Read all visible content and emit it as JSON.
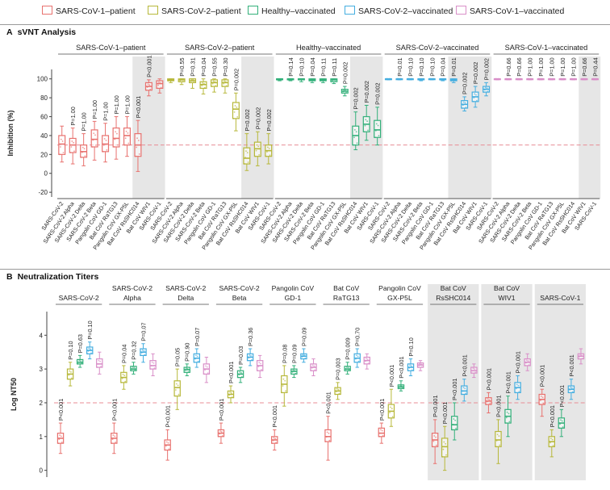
{
  "legend": [
    {
      "label": "SARS-CoV-1–patient",
      "color": "#e8726f"
    },
    {
      "label": "SARS-CoV-2–patient",
      "color": "#b7b83a"
    },
    {
      "label": "Healthy–vaccinated",
      "color": "#33b07a"
    },
    {
      "label": "SARS-CoV-2–vaccinated",
      "color": "#45aee0"
    },
    {
      "label": "SARS-CoV-1–vaccinated",
      "color": "#d98fc8"
    }
  ],
  "panel_a": {
    "letter": "A",
    "title": "sVNT Analysis"
  },
  "panel_b": {
    "letter": "B",
    "title": "Neutralization Titers"
  },
  "chart_data": [
    {
      "type": "box",
      "title": "sVNT Analysis",
      "xlabel": "",
      "ylabel": "Inhibition (%)",
      "ylim": [
        -25,
        110
      ],
      "yticks": [
        -20,
        0,
        20,
        40,
        60,
        80,
        100
      ],
      "threshold": 30,
      "categories": [
        "SARS-CoV-2",
        "SARS-CoV-2 Alpha",
        "SARS-CoV-2 Delta",
        "SARS-CoV-2 Beta",
        "Pangolin CoV GD-1",
        "Bat CoV RaTG13",
        "Pangolin CoV GX-P5L",
        "Bat CoV RsSHC014",
        "Bat CoV WIV1",
        "SARS-CoV-1"
      ],
      "shaded_from_index": 7,
      "groups": [
        {
          "name": "SARS-CoV-1–patient",
          "color": "#e8726f",
          "shaded_start": 7,
          "pvalues": [
            "",
            "P=1.00",
            "P=1.00",
            "P=1.00",
            "P=1.00",
            "P=1.00",
            "P=1.00",
            "P<0.001",
            "P<0.001",
            ""
          ],
          "boxes": [
            [
              12,
              20,
              31,
              40,
              50
            ],
            [
              10,
              22,
              30,
              37,
              48
            ],
            [
              8,
              17,
              23,
              30,
              42
            ],
            [
              14,
              28,
              36,
              46,
              55
            ],
            [
              12,
              23,
              31,
              40,
              53
            ],
            [
              15,
              28,
              37,
              48,
              60
            ],
            [
              18,
              30,
              40,
              48,
              60
            ],
            [
              2,
              18,
              30,
              42,
              56
            ],
            [
              82,
              88,
              92,
              96,
              99
            ],
            [
              85,
              90,
              95,
              98,
              100
            ]
          ]
        },
        {
          "name": "SARS-CoV-2–patient",
          "color": "#b7b83a",
          "shaded_start": 7,
          "pvalues": [
            "",
            "P=0.55",
            "P=0.31",
            "P=0.04",
            "P=0.55",
            "P=0.30",
            "P=0.002",
            "P=0.002",
            "P=0.002",
            "P=0.002"
          ],
          "boxes": [
            [
              96,
              98,
              99,
              100,
              100
            ],
            [
              94,
              97,
              99,
              100,
              100
            ],
            [
              90,
              96,
              98,
              100,
              100
            ],
            [
              84,
              90,
              94,
              97,
              100
            ],
            [
              86,
              92,
              96,
              99,
              100
            ],
            [
              85,
              92,
              96,
              99,
              100
            ],
            [
              45,
              58,
              68,
              75,
              85
            ],
            [
              3,
              10,
              16,
              27,
              42
            ],
            [
              8,
              18,
              26,
              33,
              44
            ],
            [
              10,
              18,
              24,
              30,
              42
            ]
          ]
        },
        {
          "name": "Healthy–vaccinated",
          "color": "#33b07a",
          "shaded_start": 7,
          "pvalues": [
            "",
            "P=0.14",
            "P=0.10",
            "P=0.04",
            "P=0.11",
            "P=0.11",
            "P=0.002",
            "P=0.002",
            "P=0.002",
            "P=0.002"
          ],
          "boxes": [
            [
              98,
              99,
              100,
              100,
              100
            ],
            [
              98,
              99,
              100,
              100,
              100
            ],
            [
              97,
              99,
              100,
              100,
              100
            ],
            [
              96,
              98,
              99,
              100,
              100
            ],
            [
              96,
              98,
              99,
              100,
              100
            ],
            [
              95,
              97,
              99,
              100,
              100
            ],
            [
              82,
              85,
              87,
              89,
              92
            ],
            [
              25,
              30,
              40,
              50,
              65
            ],
            [
              35,
              44,
              52,
              60,
              72
            ],
            [
              30,
              38,
              46,
              56,
              70
            ]
          ]
        },
        {
          "name": "SARS-CoV-2–vaccinated",
          "color": "#45aee0",
          "shaded_start": 6,
          "pvalues": [
            "",
            "P=0.01",
            "P=0.10",
            "P=0.10",
            "P=0.10",
            "P=0.04",
            "P=0.01",
            "P=0.002",
            "P=0.002",
            "P=0.002"
          ],
          "boxes": [
            [
              99,
              100,
              100,
              100,
              100
            ],
            [
              99,
              100,
              100,
              100,
              100
            ],
            [
              99,
              100,
              100,
              100,
              100
            ],
            [
              98,
              99,
              100,
              100,
              100
            ],
            [
              99,
              100,
              100,
              100,
              100
            ],
            [
              98,
              99,
              100,
              100,
              100
            ],
            [
              96,
              98,
              99,
              100,
              100
            ],
            [
              66,
              69,
              73,
              77,
              81
            ],
            [
              70,
              76,
              81,
              86,
              92
            ],
            [
              82,
              86,
              89,
              92,
              96
            ]
          ]
        },
        {
          "name": "SARS-CoV-1–vaccinated",
          "color": "#d98fc8",
          "shaded_start": 8,
          "pvalues": [
            "",
            "P=0.66",
            "P=0.66",
            "P=1.00",
            "P=1.00",
            "P=1.00",
            "P=1.00",
            "P=1.00",
            "P=0.66",
            "P=0.44"
          ],
          "boxes": [
            [
              99,
              100,
              100,
              100,
              100
            ],
            [
              99,
              100,
              100,
              100,
              100
            ],
            [
              99,
              100,
              100,
              100,
              100
            ],
            [
              99,
              100,
              100,
              100,
              100
            ],
            [
              99,
              100,
              100,
              100,
              100
            ],
            [
              99,
              100,
              100,
              100,
              100
            ],
            [
              99,
              100,
              100,
              100,
              100
            ],
            [
              99,
              100,
              100,
              100,
              100
            ],
            [
              99,
              100,
              100,
              100,
              100
            ],
            [
              99,
              100,
              100,
              100,
              100
            ]
          ]
        }
      ]
    },
    {
      "type": "box",
      "title": "Neutralization Titers",
      "xlabel": "",
      "ylabel": "Log NT50",
      "ylim": [
        -0.2,
        4.7
      ],
      "yticks": [
        0,
        1,
        2,
        3,
        4
      ],
      "threshold": 2,
      "group_order": [
        "SARS-CoV-1–patient",
        "SARS-CoV-2–patient",
        "Healthy–vaccinated",
        "SARS-CoV-2–vaccinated",
        "SARS-CoV-1–vaccinated"
      ],
      "colors": [
        "#e8726f",
        "#b7b83a",
        "#33b07a",
        "#45aee0",
        "#d98fc8"
      ],
      "viruses": [
        {
          "name": "SARS-CoV-2",
          "shaded": false,
          "pvalues": [
            "P<0.001",
            "P=0.10",
            "P=0.63",
            "P=0.10",
            ""
          ],
          "boxes": [
            [
              0.5,
              0.8,
              0.95,
              1.1,
              1.4
            ],
            [
              2.5,
              2.7,
              2.85,
              3.0,
              3.2
            ],
            [
              3.05,
              3.15,
              3.2,
              3.28,
              3.4
            ],
            [
              3.3,
              3.45,
              3.55,
              3.65,
              3.8
            ],
            [
              2.85,
              3.05,
              3.15,
              3.3,
              3.5
            ]
          ]
        },
        {
          "name": "SARS-CoV-2 Alpha",
          "shaded": false,
          "pvalues": [
            "P<0.001",
            "P=0.04",
            "P=0.32",
            "P=0.07",
            ""
          ],
          "boxes": [
            [
              0.5,
              0.8,
              0.95,
              1.1,
              1.4
            ],
            [
              2.4,
              2.6,
              2.75,
              2.9,
              3.1
            ],
            [
              2.85,
              2.95,
              3.0,
              3.08,
              3.2
            ],
            [
              3.2,
              3.4,
              3.5,
              3.6,
              3.75
            ],
            [
              2.8,
              3.0,
              3.1,
              3.25,
              3.45
            ]
          ]
        },
        {
          "name": "SARS-CoV-2 Delta",
          "shaded": false,
          "pvalues": [
            "P<0.001",
            "P=0.05",
            "P=0.90",
            "P=0.07",
            ""
          ],
          "boxes": [
            [
              0.3,
              0.6,
              0.75,
              0.9,
              1.2
            ],
            [
              1.8,
              2.2,
              2.45,
              2.65,
              3.0
            ],
            [
              2.8,
              2.9,
              2.98,
              3.05,
              3.15
            ],
            [
              3.05,
              3.2,
              3.32,
              3.45,
              3.6
            ],
            [
              2.6,
              2.85,
              3.0,
              3.15,
              3.35
            ]
          ]
        },
        {
          "name": "SARS-CoV-2 Beta",
          "shaded": false,
          "pvalues": [
            "P<0.001",
            "P<0.001",
            "P=0.03",
            "P=0.36",
            ""
          ],
          "boxes": [
            [
              0.8,
              1.0,
              1.1,
              1.2,
              1.4
            ],
            [
              2.0,
              2.15,
              2.25,
              2.35,
              2.5
            ],
            [
              2.6,
              2.75,
              2.85,
              2.95,
              3.05
            ],
            [
              3.1,
              3.25,
              3.35,
              3.45,
              3.6
            ],
            [
              2.75,
              2.95,
              3.1,
              3.25,
              3.4
            ]
          ]
        },
        {
          "name": "Pangolin CoV GD-1",
          "shaded": false,
          "pvalues": [
            "P<0.001",
            "P=0.08",
            "P=0.09",
            "P=0.09",
            ""
          ],
          "boxes": [
            [
              0.6,
              0.8,
              0.9,
              1.0,
              1.2
            ],
            [
              1.9,
              2.3,
              2.55,
              2.8,
              3.1
            ],
            [
              2.75,
              2.85,
              2.93,
              3.0,
              3.1
            ],
            [
              3.2,
              3.3,
              3.38,
              3.45,
              3.6
            ],
            [
              2.8,
              2.95,
              3.05,
              3.15,
              3.3
            ]
          ]
        },
        {
          "name": "Bat CoV RaTG13",
          "shaded": false,
          "pvalues": [
            "P<0.001",
            "P=0.003",
            "P=0.009",
            "P=0.70",
            ""
          ],
          "boxes": [
            [
              0.3,
              0.85,
              1.0,
              1.2,
              1.6
            ],
            [
              2.1,
              2.25,
              2.35,
              2.45,
              2.6
            ],
            [
              2.85,
              2.95,
              3.0,
              3.08,
              3.2
            ],
            [
              3.05,
              3.2,
              3.32,
              3.45,
              3.6
            ],
            [
              3.0,
              3.15,
              3.25,
              3.35,
              3.45
            ]
          ]
        },
        {
          "name": "Pangolin CoV GX-P5L",
          "shaded": false,
          "pvalues": [
            "P<0.001",
            "P<0.001",
            "P<0.001",
            "P=0.10",
            ""
          ],
          "boxes": [
            [
              0.8,
              1.0,
              1.1,
              1.25,
              1.4
            ],
            [
              1.3,
              1.55,
              1.75,
              1.95,
              2.4
            ],
            [
              2.35,
              2.42,
              2.47,
              2.53,
              2.65
            ],
            [
              2.8,
              2.95,
              3.05,
              3.15,
              3.3
            ],
            [
              2.95,
              3.05,
              3.12,
              3.18,
              3.25
            ]
          ]
        },
        {
          "name": "Bat CoV RsSHC014",
          "shaded": true,
          "pvalues": [
            "P<0.001",
            "P<0.001",
            "P<0.001",
            "P<0.001",
            ""
          ],
          "boxes": [
            [
              0.2,
              0.7,
              0.9,
              1.1,
              1.5
            ],
            [
              0.0,
              0.4,
              0.7,
              0.95,
              1.3
            ],
            [
              0.9,
              1.2,
              1.35,
              1.6,
              2.0
            ],
            [
              2.05,
              2.25,
              2.35,
              2.5,
              2.7
            ],
            [
              2.75,
              2.88,
              2.95,
              3.05,
              3.15
            ]
          ]
        },
        {
          "name": "Bat CoV WIV1",
          "shaded": true,
          "pvalues": [
            "P<0.001",
            "P<0.001",
            "P<0.001",
            "P<0.001",
            ""
          ],
          "boxes": [
            [
              1.7,
              1.95,
              2.05,
              2.15,
              2.3
            ],
            [
              0.2,
              0.7,
              0.9,
              1.15,
              1.5
            ],
            [
              1.0,
              1.4,
              1.6,
              1.8,
              2.2
            ],
            [
              2.1,
              2.3,
              2.45,
              2.6,
              2.8
            ],
            [
              2.95,
              3.1,
              3.2,
              3.3,
              3.45
            ]
          ]
        },
        {
          "name": "SARS-CoV-1",
          "shaded": true,
          "pvalues": [
            "P<0.001",
            "P<0.001",
            "P<0.001",
            "P<0.001",
            ""
          ],
          "boxes": [
            [
              1.6,
              1.95,
              2.1,
              2.25,
              2.4
            ],
            [
              0.4,
              0.7,
              0.85,
              1.0,
              1.2
            ],
            [
              1.0,
              1.25,
              1.4,
              1.55,
              1.8
            ],
            [
              2.1,
              2.3,
              2.4,
              2.5,
              2.7
            ],
            [
              3.15,
              3.3,
              3.38,
              3.45,
              3.6
            ]
          ]
        }
      ]
    }
  ]
}
